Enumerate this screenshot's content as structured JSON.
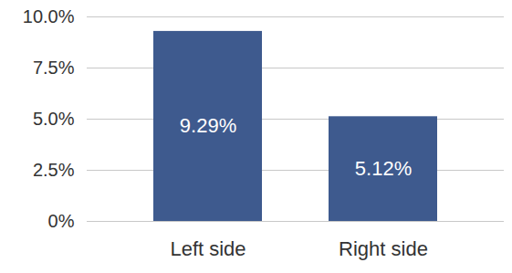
{
  "chart_data": {
    "type": "bar",
    "categories": [
      "Left side",
      "Right side"
    ],
    "values": [
      9.29,
      5.12
    ],
    "value_labels": [
      "9.29%",
      "5.12%"
    ],
    "color": "#3e5a8e",
    "ylim": [
      0,
      10
    ],
    "yticks": [
      {
        "value": 0,
        "label": "0%"
      },
      {
        "value": 2.5,
        "label": "2.5%"
      },
      {
        "value": 5,
        "label": "5.0%"
      },
      {
        "value": 7.5,
        "label": "7.5%"
      },
      {
        "value": 10,
        "label": "10.0%"
      }
    ],
    "grid": true,
    "data_labels": true
  }
}
